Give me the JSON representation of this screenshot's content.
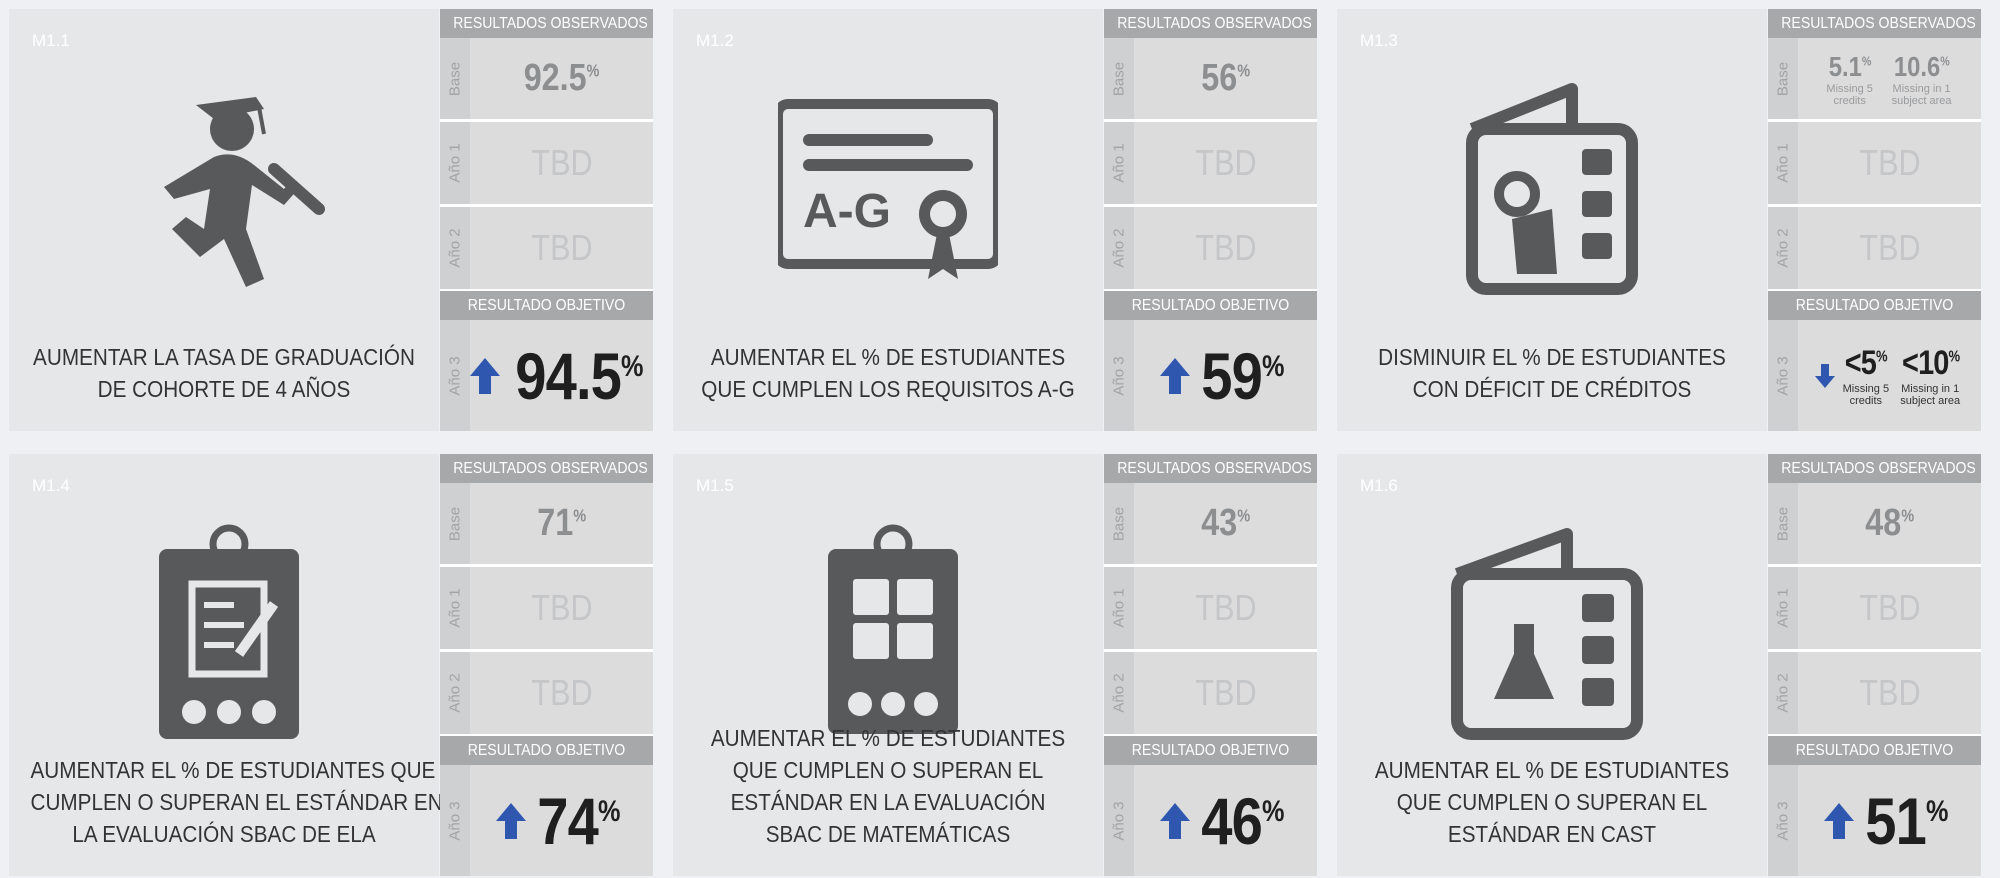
{
  "cards": [
    {
      "id": "M1.1",
      "description": [
        "AUMENTAR LA TASA DE GRADUACIÓN",
        "DE COHORTE DE 4 AÑOS"
      ],
      "observed_header": "RESULTADOS OBSERVADOS",
      "rows": [
        {
          "label": "Base",
          "values": [
            {
              "value": "92.5",
              "unit": "%"
            }
          ]
        },
        {
          "label": "Año 1",
          "values": [
            {
              "value": "TBD"
            }
          ]
        },
        {
          "label": "Año 2",
          "values": [
            {
              "value": "TBD"
            }
          ]
        }
      ],
      "target_header": "RESULTADO OBJETIVO",
      "target": {
        "label": "Año 3",
        "direction": "up",
        "values": [
          {
            "value": "94.5",
            "unit": "%"
          }
        ]
      }
    },
    {
      "id": "M1.2",
      "icon_text": "A-G",
      "description": [
        "AUMENTAR EL % DE ESTUDIANTES",
        "QUE CUMPLEN LOS REQUISITOS A-G"
      ],
      "observed_header": "RESULTADOS OBSERVADOS",
      "rows": [
        {
          "label": "Base",
          "values": [
            {
              "value": "56",
              "unit": "%"
            }
          ]
        },
        {
          "label": "Año 1",
          "values": [
            {
              "value": "TBD"
            }
          ]
        },
        {
          "label": "Año 2",
          "values": [
            {
              "value": "TBD"
            }
          ]
        }
      ],
      "target_header": "RESULTADO OBJETIVO",
      "target": {
        "label": "Año 3",
        "direction": "up",
        "values": [
          {
            "value": "59",
            "unit": "%"
          }
        ]
      }
    },
    {
      "id": "M1.3",
      "description": [
        "DISMINUIR EL % DE ESTUDIANTES",
        "CON DÉFICIT DE CRÉDITOS"
      ],
      "observed_header": "RESULTADOS OBSERVADOS",
      "rows": [
        {
          "label": "Base",
          "values": [
            {
              "value": "5.1",
              "unit": "%",
              "caption": [
                "Missing 5",
                "credits"
              ]
            },
            {
              "value": "10.6",
              "unit": "%",
              "caption": [
                "Missing in 1",
                "subject area"
              ]
            }
          ]
        },
        {
          "label": "Año 1",
          "values": [
            {
              "value": "TBD"
            }
          ]
        },
        {
          "label": "Año 2",
          "values": [
            {
              "value": "TBD"
            }
          ]
        }
      ],
      "target_header": "RESULTADO OBJETIVO",
      "target": {
        "label": "Año 3",
        "direction": "down",
        "values": [
          {
            "value": "<5",
            "unit": "%",
            "caption": [
              "Missing 5",
              "credits"
            ]
          },
          {
            "value": "<10",
            "unit": "%",
            "caption": [
              "Missing in 1",
              "subject area"
            ]
          }
        ]
      }
    },
    {
      "id": "M1.4",
      "description": [
        "AUMENTAR EL % DE ESTUDIANTES QUE",
        "CUMPLEN O SUPERAN EL ESTÁNDAR EN",
        "LA EVALUACIÓN SBAC DE ELA"
      ],
      "observed_header": "RESULTADOS OBSERVADOS",
      "rows": [
        {
          "label": "Base",
          "values": [
            {
              "value": "71",
              "unit": "%"
            }
          ]
        },
        {
          "label": "Año 1",
          "values": [
            {
              "value": "TBD"
            }
          ]
        },
        {
          "label": "Año 2",
          "values": [
            {
              "value": "TBD"
            }
          ]
        }
      ],
      "target_header": "RESULTADO OBJETIVO",
      "target": {
        "label": "Año 3",
        "direction": "up",
        "values": [
          {
            "value": "74",
            "unit": "%"
          }
        ]
      }
    },
    {
      "id": "M1.5",
      "description": [
        "AUMENTAR EL % DE ESTUDIANTES",
        "QUE CUMPLEN O SUPERAN EL",
        "ESTÁNDAR EN LA EVALUACIÓN",
        "SBAC DE MATEMÁTICAS"
      ],
      "observed_header": "RESULTADOS OBSERVADOS",
      "rows": [
        {
          "label": "Base",
          "values": [
            {
              "value": "43",
              "unit": "%"
            }
          ]
        },
        {
          "label": "Año 1",
          "values": [
            {
              "value": "TBD"
            }
          ]
        },
        {
          "label": "Año 2",
          "values": [
            {
              "value": "TBD"
            }
          ]
        }
      ],
      "target_header": "RESULTADO OBJETIVO",
      "target": {
        "label": "Año 3",
        "direction": "up",
        "values": [
          {
            "value": "46",
            "unit": "%"
          }
        ]
      }
    },
    {
      "id": "M1.6",
      "description": [
        "AUMENTAR EL % DE ESTUDIANTES",
        "QUE CUMPLEN O SUPERAN EL",
        "ESTÁNDAR EN CAST"
      ],
      "observed_header": "RESULTADOS OBSERVADOS",
      "rows": [
        {
          "label": "Base",
          "values": [
            {
              "value": "48",
              "unit": "%"
            }
          ]
        },
        {
          "label": "Año 1",
          "values": [
            {
              "value": "TBD"
            }
          ]
        },
        {
          "label": "Año 2",
          "values": [
            {
              "value": "TBD"
            }
          ]
        }
      ],
      "target_header": "RESULTADO OBJETIVO",
      "target": {
        "label": "Año 3",
        "direction": "up",
        "values": [
          {
            "value": "51",
            "unit": "%"
          }
        ]
      }
    }
  ]
}
